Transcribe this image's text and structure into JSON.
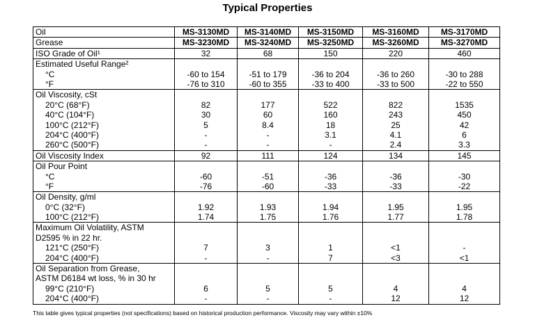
{
  "title": "Typical Properties",
  "products": {
    "oil_label": "Oil",
    "oil": [
      "MS-3130MD",
      "MS-3140MD",
      "MS-3150MD",
      "MS-3160MD",
      "MS-3170MD"
    ],
    "grease_label": "Grease",
    "grease": [
      "MS-3230MD",
      "MS-3240MD",
      "MS-3250MD",
      "MS-3260MD",
      "MS-3270MD"
    ]
  },
  "rows": [
    {
      "heading": [],
      "lines": [
        {
          "label": "ISO Grade of Oil¹",
          "values": [
            "32",
            "68",
            "150",
            "220",
            "460"
          ]
        }
      ]
    },
    {
      "heading": [
        "Estimated Useful Range²"
      ],
      "lines": [
        {
          "label": "°C",
          "values": [
            "-60 to 154",
            "-51 to 179",
            "-36 to 204",
            "-36 to 260",
            "-30 to 288"
          ]
        },
        {
          "label": "°F",
          "values": [
            "-76 to 310",
            "-60 to 355",
            "-33 to 400",
            "-33 to 500",
            "-22 to 550"
          ]
        }
      ]
    },
    {
      "heading": [
        "Oil Viscosity, cSt"
      ],
      "lines": [
        {
          "label": "20°C (68°F)",
          "values": [
            "82",
            "177",
            "522",
            "822",
            "1535"
          ]
        },
        {
          "label": "40°C (104°F)",
          "values": [
            "30",
            "60",
            "160",
            "243",
            "450"
          ]
        },
        {
          "label": "100°C (212°F)",
          "values": [
            "5",
            "8.4",
            "18",
            "25",
            "42"
          ]
        },
        {
          "label": "204°C (400°F)",
          "values": [
            "-",
            "-",
            "3.1",
            "4.1",
            "6"
          ]
        },
        {
          "label": "260°C (500°F)",
          "values": [
            "-",
            "-",
            "-",
            "2.4",
            "3.3"
          ]
        }
      ]
    },
    {
      "heading": [],
      "lines": [
        {
          "label": "Oil Viscosity Index",
          "values": [
            "92",
            "111",
            "124",
            "134",
            "145"
          ]
        }
      ]
    },
    {
      "heading": [
        "Oil Pour Point"
      ],
      "lines": [
        {
          "label": "°C",
          "values": [
            "-60",
            "-51",
            "-36",
            "-36",
            "-30"
          ]
        },
        {
          "label": "°F",
          "values": [
            "-76",
            "-60",
            "-33",
            "-33",
            "-22"
          ]
        }
      ]
    },
    {
      "heading": [
        "Oil Density, g/ml"
      ],
      "lines": [
        {
          "label": "0°C (32°F)",
          "values": [
            "1.92",
            "1.93",
            "1.94",
            "1.95",
            "1.95"
          ]
        },
        {
          "label": "100°C (212°F)",
          "values": [
            "1.74",
            "1.75",
            "1.76",
            "1.77",
            "1.78"
          ]
        }
      ]
    },
    {
      "heading": [
        "Maximum Oil Volatility, ASTM",
        "D2595 % in 22 hr."
      ],
      "lines": [
        {
          "label": "121°C (250°F)",
          "values": [
            "7",
            "3",
            "1",
            "<1",
            "-"
          ]
        },
        {
          "label": "204°C (400°F)",
          "values": [
            "-",
            "-",
            "7",
            "<3",
            "<1"
          ]
        }
      ]
    },
    {
      "heading": [
        "Oil Separation from Grease,",
        "ASTM D6184 wt loss, % in 30 hr"
      ],
      "lines": [
        {
          "label": "99°C (210°F)",
          "values": [
            "6",
            "5",
            "5",
            "4",
            "4"
          ]
        },
        {
          "label": "204°C (400°F)",
          "values": [
            "-",
            "-",
            "-",
            "12",
            "12"
          ]
        }
      ]
    }
  ],
  "footnote": "This table gives typical properties (not specifications) based on historical production performance. Viscosity may vary within ±10%"
}
